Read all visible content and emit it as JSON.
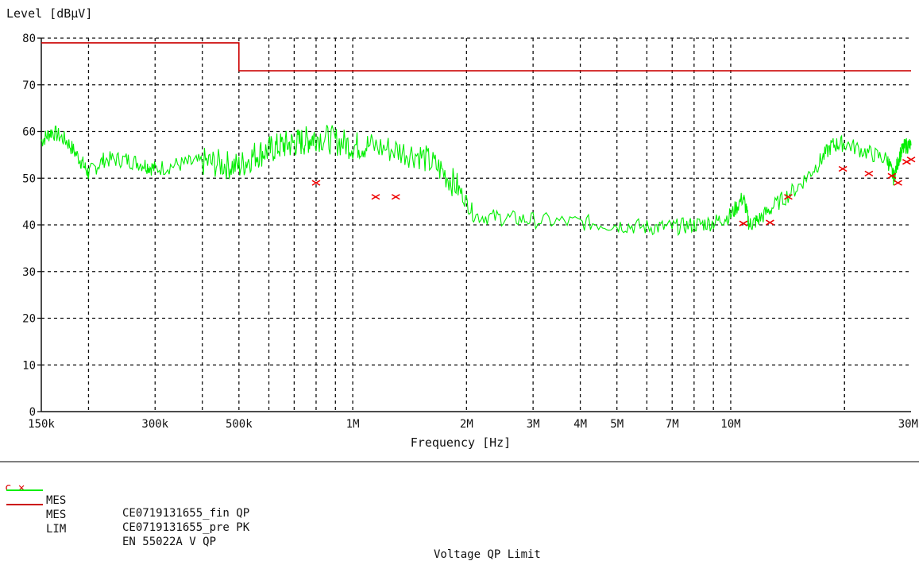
{
  "chart_data": {
    "type": "line",
    "ylabel": "Level [dBµV]",
    "xlabel": "Frequency [Hz]",
    "xscale": "log",
    "xlim": [
      150000,
      30000000
    ],
    "ylim": [
      0,
      80
    ],
    "grid": true,
    "x_tick_values": [
      150000,
      300000,
      500000,
      1000000,
      2000000,
      3000000,
      4000000,
      5000000,
      7000000,
      10000000,
      30000000
    ],
    "x_tick_labels": [
      "150k",
      "300k",
      "500k",
      "1M",
      "2M",
      "3M",
      "4M",
      "5M",
      "7M",
      "10M",
      "30M"
    ],
    "y_ticks": [
      0,
      10,
      20,
      30,
      40,
      50,
      60,
      70,
      80
    ],
    "series": [
      {
        "name": "CE0719131655_pre PK",
        "legend_tag": "MES",
        "color": "#00ee00",
        "kind": "line",
        "x": [
          150000,
          160000,
          175000,
          190000,
          200000,
          220000,
          250000,
          280000,
          300000,
          350000,
          400000,
          450000,
          500000,
          550000,
          600000,
          650000,
          700000,
          750000,
          800000,
          900000,
          1000000,
          1100000,
          1300000,
          1500000,
          1700000,
          1900000,
          2100000,
          2500000,
          3000000,
          4000000,
          5000000,
          6000000,
          7000000,
          8000000,
          9000000,
          10000000,
          10800000,
          11200000,
          11800000,
          13000000,
          15000000,
          17000000,
          18500000,
          20000000,
          23000000,
          26000000,
          27000000,
          28000000,
          29000000,
          30000000
        ],
        "y": [
          58,
          60,
          58,
          54,
          51,
          54,
          54,
          53,
          52,
          53,
          53.5,
          53,
          52.5,
          55,
          56,
          57,
          57.5,
          58,
          59,
          58,
          57,
          57,
          56,
          55,
          52,
          48,
          42,
          41.5,
          41,
          40.5,
          40,
          39.5,
          39.5,
          40,
          40.5,
          42,
          46,
          40,
          41,
          44,
          48,
          53,
          57,
          57.5,
          55.5,
          54,
          50,
          55,
          57,
          57
        ]
      },
      {
        "name": "CE0719131655_fin QP",
        "legend_tag": "MES",
        "color": "#ee0000",
        "kind": "markers",
        "x": [
          800000,
          1150000,
          1300000,
          10800000,
          12700000,
          14200000,
          19800000,
          23200000,
          26700000,
          27700000,
          29200000,
          30000000
        ],
        "y": [
          49,
          46,
          46,
          40.3,
          40.5,
          46,
          52,
          51,
          50.5,
          49,
          53.5,
          54
        ]
      },
      {
        "name": "EN 55022A V QP",
        "legend_tag": "LIM",
        "description": "Voltage QP Limit",
        "color": "#cc0000",
        "kind": "step",
        "x": [
          150000,
          500000,
          500000,
          30000000
        ],
        "y": [
          79,
          79,
          73,
          73
        ]
      }
    ]
  },
  "legend": [
    {
      "marker": "c ✕",
      "tag": "MES",
      "name": "CE0719131655_fin QP",
      "desc": ""
    },
    {
      "marker": "",
      "tag": "MES",
      "name": "CE0719131655_pre PK",
      "desc": ""
    },
    {
      "marker": "",
      "tag": "LIM",
      "name": "EN 55022A V QP",
      "desc": "Voltage QP Limit"
    }
  ]
}
